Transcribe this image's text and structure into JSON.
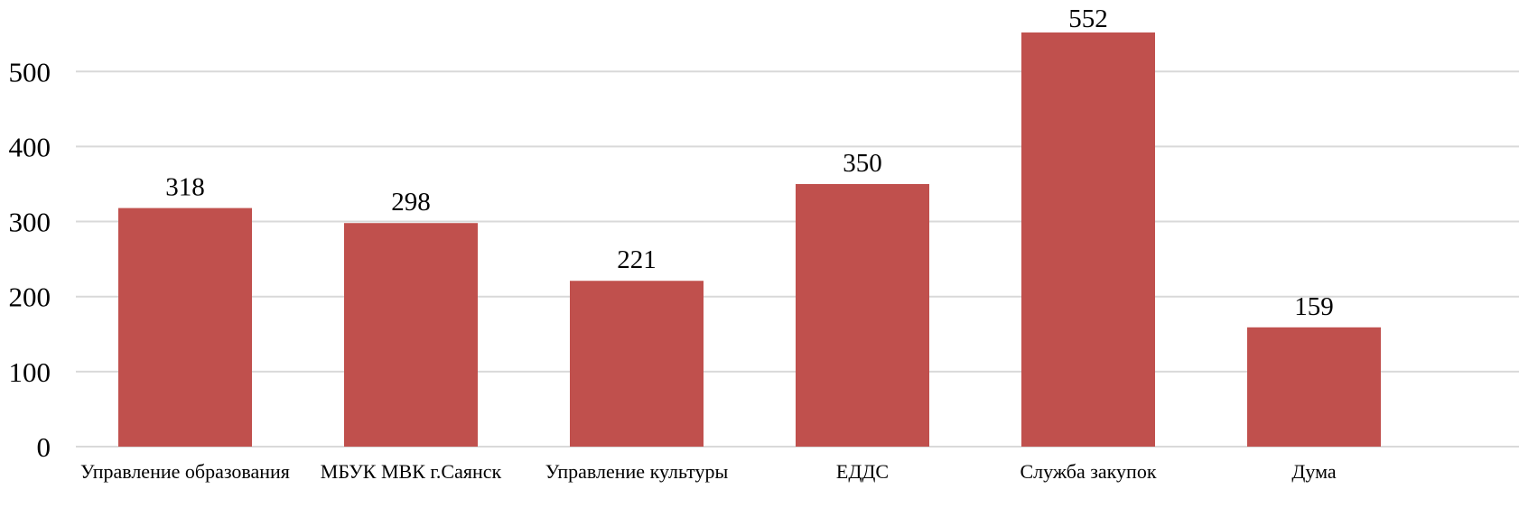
{
  "chart_data": {
    "type": "bar",
    "title": "",
    "xlabel": "",
    "ylabel": "",
    "categories": [
      "Управление образования",
      "МБУК МВК г.Саянск",
      "Управление культуры",
      "ЕДДС",
      "Служба закупок",
      "Дума"
    ],
    "values": [
      318,
      298,
      221,
      350,
      552,
      159
    ],
    "data_labels": [
      "318",
      "298",
      "221",
      "350",
      "552",
      "159"
    ],
    "ylim": [
      0,
      552
    ],
    "yticks": [
      0,
      100,
      200,
      300,
      400,
      500
    ],
    "ytick_labels": [
      "0",
      "100",
      "200",
      "300",
      "400",
      "500"
    ],
    "grid": true,
    "legend": "none",
    "colors": {
      "bar": "#c0504d",
      "grid": "#d9d9d9"
    }
  }
}
